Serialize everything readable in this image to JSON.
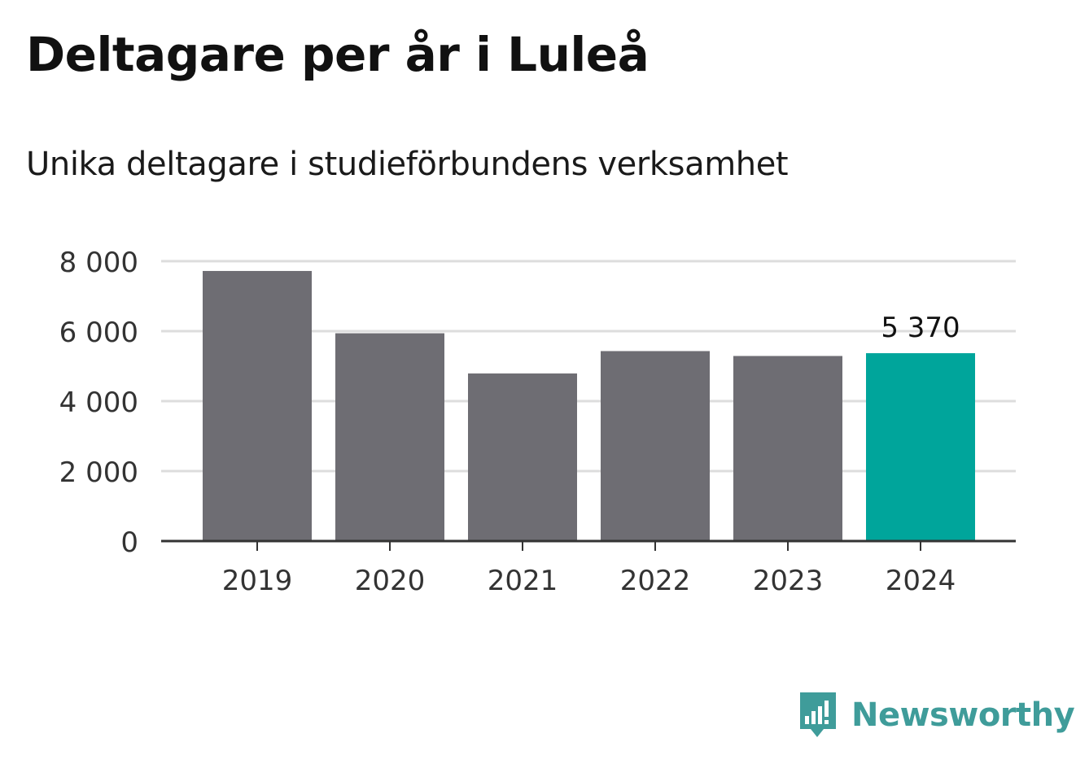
{
  "header": {
    "title": "Deltagare per år i Luleå",
    "subtitle": "Unika deltagare i studieförbundens verksamhet"
  },
  "brand": {
    "name": "Newsworthy",
    "logo_icon": "bar-chart-speech-bubble-icon",
    "color": "#3f9c9a"
  },
  "colors": {
    "bar_default": "#6e6d73",
    "bar_highlight": "#00a59b",
    "grid": "#dddddd",
    "axis": "#333333",
    "tick_text": "#333333"
  },
  "chart_data": {
    "type": "bar",
    "title": "Deltagare per år i Luleå",
    "subtitle": "Unika deltagare i studieförbundens verksamhet",
    "xlabel": "",
    "ylabel": "",
    "categories": [
      "2019",
      "2020",
      "2021",
      "2022",
      "2023",
      "2024"
    ],
    "values": [
      7720,
      5940,
      4790,
      5430,
      5290,
      5370
    ],
    "ylim": [
      0,
      8000
    ],
    "yticks": [
      0,
      2000,
      4000,
      6000,
      8000
    ],
    "ytick_labels": [
      "0",
      "2 000",
      "4 000",
      "6 000",
      "8 000"
    ],
    "highlight_index": 5,
    "data_labels": [
      {
        "index": 5,
        "text": "5 370"
      }
    ],
    "grid": true,
    "legend": "none"
  }
}
